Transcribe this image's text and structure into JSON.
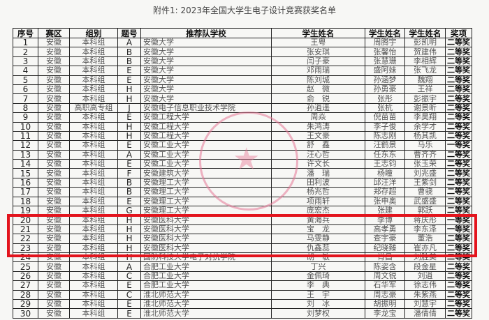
{
  "title": "附件1:  2023年全国大学生电子设计竞赛获奖名单",
  "headers": [
    "序号",
    "赛区",
    "组别",
    "题号",
    "推荐队学校",
    "学生姓名",
    "学生姓名",
    "学生姓名",
    "奖项"
  ],
  "rows": [
    [
      "1",
      "安徽",
      "本科组",
      "A",
      "安徽大学",
      "王粤",
      "周腾宇",
      "彭凯明",
      "二等奖"
    ],
    [
      "2",
      "安徽",
      "本科组",
      "B",
      "安徽大学",
      "张安琪",
      "张馨怡",
      "贺建伟",
      "二等奖"
    ],
    [
      "3",
      "安徽",
      "本科组",
      "B",
      "安徽大学",
      "闫子豪",
      "张慧珊",
      "李相辉",
      "二等奖"
    ],
    [
      "4",
      "安徽",
      "本科组",
      "E",
      "安徽大学",
      "邓雨瑞",
      "盛阿妹",
      "张飞龙",
      "二等奖"
    ],
    [
      "5",
      "安徽",
      "本科组",
      "E",
      "安徽大学",
      "陈刘城",
      "孙涵梦",
      "魏翔",
      "二等奖"
    ],
    [
      "6",
      "安徽",
      "本科组",
      "H",
      "安徽大学",
      "赵　微",
      "孙勇豪",
      "王祥",
      "二等奖"
    ],
    [
      "7",
      "安徽",
      "本科组",
      "H",
      "安徽大学",
      "俞　锐",
      "张彤",
      "彭振宇",
      "二等奖"
    ],
    [
      "8",
      "安徽",
      "高职高专组",
      "J",
      "安徽电子信息职业技术学院",
      "孙逍遥",
      "张杭",
      "谢景昕",
      "二等奖"
    ],
    [
      "9",
      "安徽",
      "本科组",
      "E",
      "安徽工程大学",
      "周焱",
      "倪苗苗",
      "李昊翔",
      "二等奖"
    ],
    [
      "10",
      "安徽",
      "本科组",
      "H",
      "安徽工程大学",
      "朱鸿涛",
      "李子俊",
      "余学才",
      "二等奖"
    ],
    [
      "11",
      "安徽",
      "本科组",
      "H",
      "安徽工程大学",
      "王文豪",
      "陈志刚",
      "杨其凯",
      "二等奖"
    ],
    [
      "12",
      "安徽",
      "本科组",
      "E",
      "安徽工业大学",
      "舒　鑫",
      "汪鹤景",
      "马乐",
      "一等奖"
    ],
    [
      "13",
      "安徽",
      "本科组",
      "A",
      "安徽工业大学",
      "汪心哲",
      "任东东",
      "曹齐齐",
      "二等奖"
    ],
    [
      "14",
      "安徽",
      "本科组",
      "E",
      "安徽工业大学",
      "许文长",
      "王志钧",
      "张玉荣",
      "二等奖"
    ],
    [
      "15",
      "安徽",
      "本科组",
      "F",
      "安徽建筑大学",
      "潘　瑞",
      "杨瞳",
      "刘兆盛",
      "二等奖"
    ],
    [
      "16",
      "安徽",
      "本科组",
      "B",
      "安徽理工大学",
      "田利波",
      "邱汪洋",
      "王紫剑",
      "二等奖"
    ],
    [
      "17",
      "安徽",
      "本科组",
      "B",
      "安徽理工大学",
      "杨兆哲",
      "郑存超",
      "曹骁",
      "二等奖"
    ],
    [
      "18",
      "安徽",
      "本科组",
      "E",
      "安徽理工大学",
      "项雨轩",
      "张申奥",
      "武盛盛",
      "二等奖"
    ],
    [
      "19",
      "安徽",
      "本科组",
      "G",
      "安徽理工大学",
      "庞宏杰",
      "张建",
      "郭跃",
      "二等奖"
    ],
    [
      "20",
      "安徽",
      "本科组",
      "H",
      "安徽医科大学",
      "黄海兵",
      "李博",
      "蒋庆彤",
      "一等奖"
    ],
    [
      "21",
      "安徽",
      "本科组",
      "H",
      "安徽医科大学",
      "宝　龙",
      "高孝勇",
      "李东泽",
      "一等奖"
    ],
    [
      "22",
      "安徽",
      "本科组",
      "H",
      "安徽医科大学",
      "马雯静",
      "查宇豪",
      "董浩",
      "二等奖"
    ],
    [
      "23",
      "安徽",
      "本科组",
      "H",
      "安徽医科大学",
      "仇鑫蕊",
      "纪晓臻",
      "崔亦凡",
      "二等奖"
    ],
    [
      "24",
      "安徽",
      "本科组",
      "H",
      "国防科技大学电子对抗学院",
      "胡　敏",
      "肖昌",
      "刘胜美",
      "二等奖"
    ],
    [
      "25",
      "安徽",
      "本科组",
      "A",
      "合肥工业大学",
      "丁兴",
      "陈姿含",
      "段金星",
      "二等奖"
    ],
    [
      "26",
      "安徽",
      "本科组",
      "C",
      "合肥工业大学",
      "金佩琦",
      "周文锐",
      "刘逍",
      "二等奖"
    ],
    [
      "27",
      "安徽",
      "本科组",
      "E",
      "合肥工业大学",
      "李　典",
      "石华军",
      "徐志伟",
      "二等奖"
    ],
    [
      "28",
      "安徽",
      "本科组",
      "C",
      "淮北师范大学",
      "王　宇",
      "周志豪",
      "朱紫燕",
      "二等奖"
    ],
    [
      "29",
      "安徽",
      "本科组",
      "E",
      "淮北师范大学",
      "刘　冰",
      "胡振明",
      "刘慧宇",
      "二等奖"
    ],
    [
      "30",
      "安徽",
      "本科组",
      "E",
      "淮北师范大学",
      "刘梦权",
      "李龙宝",
      "潘倩倩",
      "二等奖"
    ]
  ],
  "highlight_color": "#e3141d",
  "stamp_color": "#e678a0"
}
